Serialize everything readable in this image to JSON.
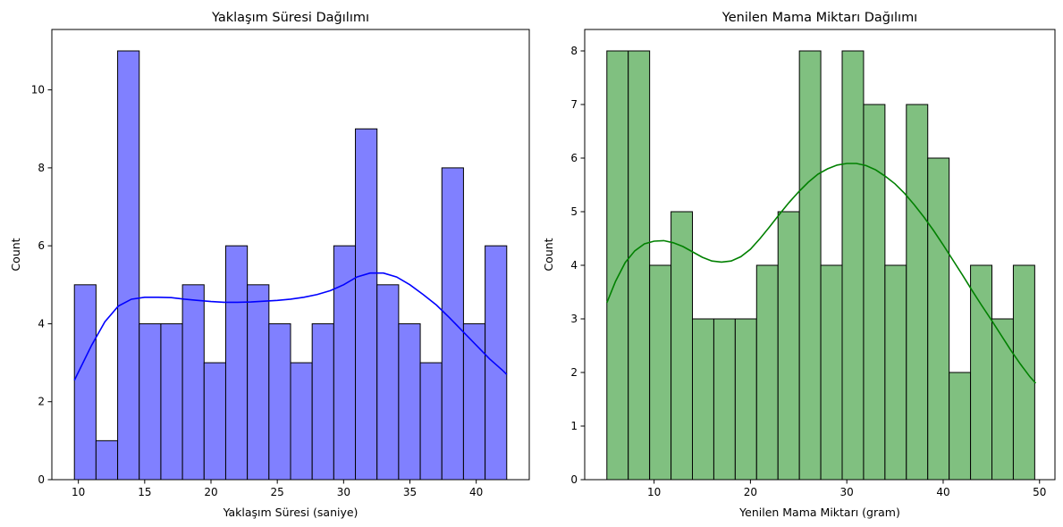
{
  "chart_data": [
    {
      "type": "histogram",
      "title": "Yaklaşım Süresi Dağılımı",
      "xlabel": "Yaklaşım Süresi (saniye)",
      "ylabel": "Count",
      "xlim": [
        8.0,
        44.0
      ],
      "ylim": [
        0,
        11.55
      ],
      "xticks": [
        10,
        15,
        20,
        25,
        30,
        35,
        40
      ],
      "yticks": [
        0,
        2,
        4,
        6,
        8,
        10
      ],
      "bin_start": 9.7,
      "bin_width": 1.63,
      "counts": [
        5,
        1,
        11,
        4,
        4,
        5,
        3,
        6,
        5,
        4,
        3,
        4,
        6,
        9,
        5,
        4,
        3,
        8,
        4,
        6
      ],
      "bar_color": "#8080ff",
      "kde_color": "#0000ff",
      "kde_curve": [
        [
          9.7,
          2.55
        ],
        [
          11.0,
          3.45
        ],
        [
          12.0,
          4.05
        ],
        [
          13.0,
          4.45
        ],
        [
          14.0,
          4.63
        ],
        [
          15.0,
          4.68
        ],
        [
          16.0,
          4.68
        ],
        [
          17.0,
          4.67
        ],
        [
          18.0,
          4.63
        ],
        [
          19.0,
          4.6
        ],
        [
          20.0,
          4.57
        ],
        [
          21.0,
          4.55
        ],
        [
          22.0,
          4.55
        ],
        [
          23.0,
          4.56
        ],
        [
          24.0,
          4.58
        ],
        [
          25.0,
          4.6
        ],
        [
          26.0,
          4.63
        ],
        [
          27.0,
          4.68
        ],
        [
          28.0,
          4.75
        ],
        [
          29.0,
          4.85
        ],
        [
          30.0,
          5.0
        ],
        [
          31.0,
          5.2
        ],
        [
          32.0,
          5.3
        ],
        [
          33.0,
          5.3
        ],
        [
          34.0,
          5.2
        ],
        [
          35.0,
          5.0
        ],
        [
          36.0,
          4.75
        ],
        [
          37.0,
          4.48
        ],
        [
          38.0,
          4.15
        ],
        [
          39.0,
          3.8
        ],
        [
          40.0,
          3.45
        ],
        [
          41.0,
          3.1
        ],
        [
          42.0,
          2.8
        ],
        [
          42.3,
          2.7
        ]
      ]
    },
    {
      "type": "histogram",
      "title": "Yenilen Mama Miktarı Dağılımı",
      "xlabel": "Yenilen Mama Miktarı (gram)",
      "ylabel": "Count",
      "xlim": [
        2.8,
        51.6
      ],
      "ylim": [
        0,
        8.4
      ],
      "xticks": [
        10,
        20,
        30,
        40,
        50
      ],
      "yticks": [
        0,
        1,
        2,
        3,
        4,
        5,
        6,
        7,
        8
      ],
      "bin_start": 5.1,
      "bin_width": 2.22,
      "counts": [
        8,
        8,
        4,
        5,
        3,
        3,
        3,
        4,
        5,
        8,
        4,
        8,
        7,
        4,
        7,
        6,
        2,
        4,
        3,
        4
      ],
      "bar_color": "#80c080",
      "kde_color": "#008000",
      "kde_curve": [
        [
          5.1,
          3.3
        ],
        [
          6.0,
          3.7
        ],
        [
          7.0,
          4.05
        ],
        [
          8.0,
          4.27
        ],
        [
          9.0,
          4.4
        ],
        [
          10.0,
          4.45
        ],
        [
          11.0,
          4.46
        ],
        [
          12.0,
          4.42
        ],
        [
          13.0,
          4.35
        ],
        [
          14.0,
          4.25
        ],
        [
          15.0,
          4.15
        ],
        [
          16.0,
          4.08
        ],
        [
          17.0,
          4.06
        ],
        [
          18.0,
          4.08
        ],
        [
          19.0,
          4.16
        ],
        [
          20.0,
          4.3
        ],
        [
          21.0,
          4.5
        ],
        [
          22.0,
          4.72
        ],
        [
          23.0,
          4.95
        ],
        [
          24.0,
          5.17
        ],
        [
          25.0,
          5.37
        ],
        [
          26.0,
          5.55
        ],
        [
          27.0,
          5.7
        ],
        [
          28.0,
          5.8
        ],
        [
          29.0,
          5.87
        ],
        [
          30.0,
          5.9
        ],
        [
          31.0,
          5.9
        ],
        [
          32.0,
          5.86
        ],
        [
          33.0,
          5.78
        ],
        [
          34.0,
          5.66
        ],
        [
          35.0,
          5.52
        ],
        [
          36.0,
          5.34
        ],
        [
          37.0,
          5.13
        ],
        [
          38.0,
          4.9
        ],
        [
          39.0,
          4.65
        ],
        [
          40.0,
          4.38
        ],
        [
          41.0,
          4.1
        ],
        [
          42.0,
          3.82
        ],
        [
          43.0,
          3.53
        ],
        [
          44.0,
          3.25
        ],
        [
          45.0,
          2.98
        ],
        [
          46.0,
          2.7
        ],
        [
          47.0,
          2.42
        ],
        [
          48.0,
          2.16
        ],
        [
          49.0,
          1.92
        ],
        [
          49.6,
          1.8
        ]
      ]
    }
  ]
}
